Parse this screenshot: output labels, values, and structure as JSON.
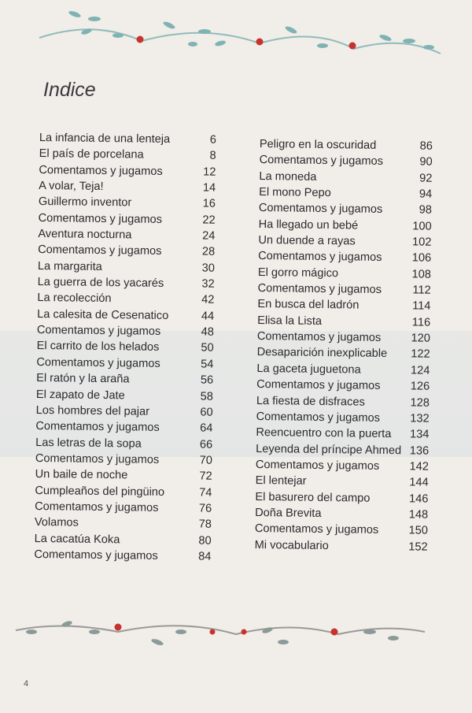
{
  "title": "Indice",
  "page_number": "4",
  "left_entries": [
    {
      "label": "La infancia de una lenteja",
      "page": "6"
    },
    {
      "label": "El país de porcelana",
      "page": "8"
    },
    {
      "label": "Comentamos y jugamos",
      "page": "12"
    },
    {
      "label": "A volar, Teja!",
      "page": "14"
    },
    {
      "label": "Guillermo inventor",
      "page": "16"
    },
    {
      "label": "Comentamos y jugamos",
      "page": "22"
    },
    {
      "label": "Aventura nocturna",
      "page": "24"
    },
    {
      "label": "Comentamos y jugamos",
      "page": "28"
    },
    {
      "label": "La margarita",
      "page": "30"
    },
    {
      "label": "La guerra de los yacarés",
      "page": "32"
    },
    {
      "label": "La recolección",
      "page": "42"
    },
    {
      "label": "La calesita de Cesenatico",
      "page": "44"
    },
    {
      "label": "Comentamos y jugamos",
      "page": "48"
    },
    {
      "label": "El carrito de los helados",
      "page": "50"
    },
    {
      "label": "Comentamos y jugamos",
      "page": "54"
    },
    {
      "label": "El ratón y la araña",
      "page": "56"
    },
    {
      "label": "El zapato de Jate",
      "page": "58"
    },
    {
      "label": "Los hombres del pajar",
      "page": "60"
    },
    {
      "label": "Comentamos y jugamos",
      "page": "64"
    },
    {
      "label": "Las letras de la sopa",
      "page": "66"
    },
    {
      "label": "Comentamos y jugamos",
      "page": "70"
    },
    {
      "label": "Un baile de noche",
      "page": "72"
    },
    {
      "label": "Cumpleaños del pingüino",
      "page": "74"
    },
    {
      "label": "Comentamos y jugamos",
      "page": "76"
    },
    {
      "label": "Volamos",
      "page": "78"
    },
    {
      "label": "La cacatúa Koka",
      "page": "80"
    },
    {
      "label": "Comentamos y jugamos",
      "page": "84"
    }
  ],
  "right_entries": [
    {
      "label": "Peligro en la oscuridad",
      "page": "86"
    },
    {
      "label": "Comentamos y jugamos",
      "page": "90"
    },
    {
      "label": "La moneda",
      "page": "92"
    },
    {
      "label": "El mono Pepo",
      "page": "94"
    },
    {
      "label": "Comentamos y jugamos",
      "page": "98"
    },
    {
      "label": "Ha llegado un bebé",
      "page": "100"
    },
    {
      "label": "Un duende a rayas",
      "page": "102"
    },
    {
      "label": "Comentamos y jugamos",
      "page": "106"
    },
    {
      "label": "El gorro mágico",
      "page": "108"
    },
    {
      "label": "Comentamos y jugamos",
      "page": "112"
    },
    {
      "label": "En busca del ladrón",
      "page": "114"
    },
    {
      "label": "Elisa la Lista",
      "page": "116"
    },
    {
      "label": "Comentamos y jugamos",
      "page": "120"
    },
    {
      "label": "Desaparición inexplicable",
      "page": "122"
    },
    {
      "label": "La gaceta juguetona",
      "page": "124"
    },
    {
      "label": "Comentamos y jugamos",
      "page": "126"
    },
    {
      "label": "La fiesta de disfraces",
      "page": "128"
    },
    {
      "label": "Comentamos y jugamos",
      "page": "132"
    },
    {
      "label": "Reencuentro con la puerta",
      "page": "134"
    },
    {
      "label": "Leyenda del príncipe Ahmed",
      "page": "136"
    },
    {
      "label": "Comentamos y jugamos",
      "page": "142"
    },
    {
      "label": "El lentejar",
      "page": "144"
    },
    {
      "label": "El basurero del campo",
      "page": "146"
    },
    {
      "label": "Doña Brevita",
      "page": "148"
    },
    {
      "label": "Comentamos y jugamos",
      "page": "150"
    },
    {
      "label": "Mi vocabulario",
      "page": "152"
    }
  ],
  "colors": {
    "paper": "#f1ede8",
    "text": "#2b2a2e",
    "vine": "#7fb3b3",
    "berry": "#c8312c"
  }
}
